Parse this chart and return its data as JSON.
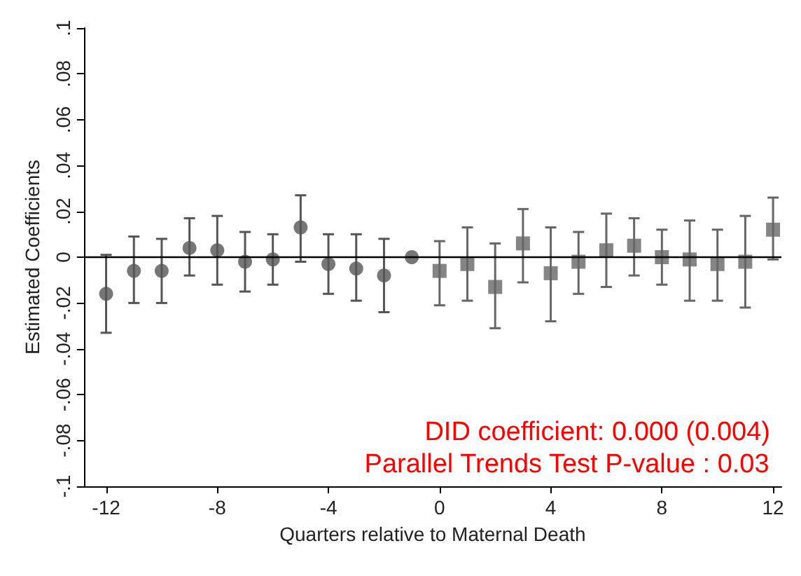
{
  "chart_data": {
    "type": "scatter",
    "xlabel": "Quarters relative to Maternal Death",
    "ylabel": "Estimated Coefficients",
    "xlim": [
      -12.8,
      12.3
    ],
    "xticks": [
      -12,
      -8,
      -4,
      0,
      4,
      8,
      12
    ],
    "ylim": [
      -0.1,
      0.1
    ],
    "yticks": [
      {
        "value": -0.1,
        "label": "-.1"
      },
      {
        "value": -0.08,
        "label": "-.08"
      },
      {
        "value": -0.06,
        "label": "-.06"
      },
      {
        "value": -0.04,
        "label": "-.04"
      },
      {
        "value": -0.02,
        "label": "-.02"
      },
      {
        "value": 0,
        "label": "0"
      },
      {
        "value": 0.02,
        "label": ".02"
      },
      {
        "value": 0.04,
        "label": ".04"
      },
      {
        "value": 0.06,
        "label": ".06"
      },
      {
        "value": 0.08,
        "label": ".08"
      },
      {
        "value": 0.1,
        "label": ".1"
      }
    ],
    "grid": false,
    "series": [
      {
        "color": "#555555",
        "marker": "circle",
        "x": [
          -12,
          -11,
          -10,
          -9,
          -8,
          -7,
          -6,
          -5,
          -4,
          -3,
          -2,
          -1
        ],
        "values": [
          -0.016,
          -0.006,
          -0.006,
          0.004,
          0.003,
          -0.002,
          -0.001,
          0.013,
          -0.003,
          -0.005,
          -0.008,
          0.0
        ],
        "errors": [
          [
            -0.033,
            0.001
          ],
          [
            -0.02,
            0.009
          ],
          [
            -0.02,
            0.008
          ],
          [
            -0.008,
            0.017
          ],
          [
            -0.012,
            0.018
          ],
          [
            -0.015,
            0.011
          ],
          [
            -0.012,
            0.01
          ],
          [
            -0.002,
            0.027
          ],
          [
            -0.016,
            0.01
          ],
          [
            -0.019,
            0.01
          ],
          [
            -0.024,
            0.008
          ],
          null
        ]
      },
      {
        "color": "#666666",
        "marker": "square",
        "x": [
          0,
          1,
          2,
          3,
          4,
          5,
          6,
          7,
          8,
          9,
          10,
          11,
          12
        ],
        "values": [
          -0.006,
          -0.003,
          -0.013,
          0.006,
          -0.007,
          -0.002,
          0.003,
          0.005,
          0.0,
          -0.001,
          -0.003,
          -0.002,
          0.012
        ],
        "errors": [
          [
            -0.021,
            0.007
          ],
          [
            -0.019,
            0.013
          ],
          [
            -0.031,
            0.006
          ],
          [
            -0.011,
            0.021
          ],
          [
            -0.028,
            0.013
          ],
          [
            -0.016,
            0.011
          ],
          [
            -0.013,
            0.019
          ],
          [
            -0.008,
            0.017
          ],
          [
            -0.012,
            0.012
          ],
          [
            -0.019,
            0.016
          ],
          [
            -0.019,
            0.012
          ],
          [
            -0.022,
            0.018
          ],
          [
            -0.001,
            0.026
          ]
        ]
      }
    ],
    "ref_lines": [
      {
        "axis": "y",
        "value": 0,
        "color": "#000000"
      }
    ],
    "annotations": [
      "DID coefficient: 0.000 (0.004)",
      "Parallel Trends Test P-value : 0.03"
    ]
  }
}
